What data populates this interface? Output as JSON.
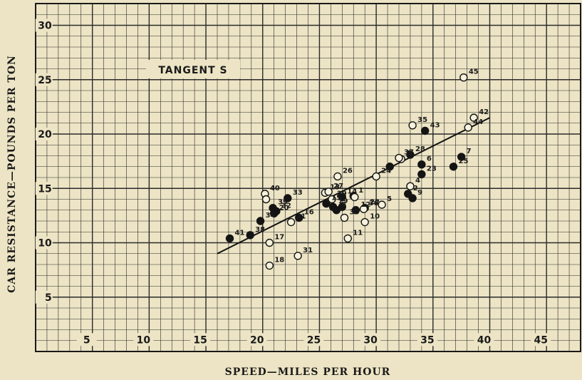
{
  "chart_data": {
    "type": "scatter",
    "annotation": "TANGENT S",
    "xlabel": "SPEED—MILES PER HOUR",
    "ylabel": "CAR RESISTANCE—POUNDS PER TON",
    "xlim": [
      0,
      48
    ],
    "ylim": [
      0,
      32
    ],
    "x_ticks": [
      5,
      10,
      15,
      20,
      25,
      30,
      35,
      40,
      45
    ],
    "y_ticks": [
      5,
      10,
      15,
      20,
      25,
      30
    ],
    "grid": true,
    "trendline": {
      "x": [
        16,
        40
      ],
      "y": [
        9.0,
        21.5
      ]
    },
    "points": [
      {
        "label": "1",
        "x": 28.0,
        "y": 14.3,
        "filled": true
      },
      {
        "label": "2",
        "x": 32.8,
        "y": 14.5,
        "filled": true
      },
      {
        "label": "3",
        "x": 32.2,
        "y": 17.7,
        "filled": false
      },
      {
        "label": "4",
        "x": 33.0,
        "y": 15.2,
        "filled": false
      },
      {
        "label": "5",
        "x": 30.5,
        "y": 13.5,
        "filled": false
      },
      {
        "label": "6",
        "x": 34.0,
        "y": 17.2,
        "filled": true
      },
      {
        "label": "7",
        "x": 37.5,
        "y": 17.9,
        "filled": true
      },
      {
        "label": "8",
        "x": 26.5,
        "y": 13.0,
        "filled": true
      },
      {
        "label": "9",
        "x": 33.2,
        "y": 14.1,
        "filled": true
      },
      {
        "label": "10",
        "x": 29.0,
        "y": 11.9,
        "filled": false
      },
      {
        "label": "11",
        "x": 27.5,
        "y": 10.4,
        "filled": false
      },
      {
        "label": "12",
        "x": 28.2,
        "y": 13.0,
        "filled": true
      },
      {
        "label": "13",
        "x": 25.5,
        "y": 14.6,
        "filled": false
      },
      {
        "label": "14",
        "x": 27.0,
        "y": 14.2,
        "filled": true
      },
      {
        "label": "15",
        "x": 25.6,
        "y": 13.6,
        "filled": true
      },
      {
        "label": "16",
        "x": 23.2,
        "y": 12.3,
        "filled": true
      },
      {
        "label": "17",
        "x": 20.6,
        "y": 10.0,
        "filled": false
      },
      {
        "label": "18",
        "x": 20.6,
        "y": 7.9,
        "filled": false
      },
      {
        "label": "19",
        "x": 26.2,
        "y": 13.3,
        "filled": true
      },
      {
        "label": "20",
        "x": 21.0,
        "y": 12.7,
        "filled": true
      },
      {
        "label": "21",
        "x": 22.5,
        "y": 11.9,
        "filled": false
      },
      {
        "label": "22",
        "x": 29.0,
        "y": 13.2,
        "filled": true
      },
      {
        "label": "23",
        "x": 34.0,
        "y": 16.3,
        "filled": true
      },
      {
        "label": "24",
        "x": 30.0,
        "y": 16.1,
        "filled": false
      },
      {
        "label": "25",
        "x": 36.8,
        "y": 17.0,
        "filled": true
      },
      {
        "label": "26",
        "x": 26.6,
        "y": 16.1,
        "filled": false
      },
      {
        "label": "27",
        "x": 25.8,
        "y": 14.7,
        "filled": false
      },
      {
        "label": "28",
        "x": 33.0,
        "y": 18.1,
        "filled": true
      },
      {
        "label": "29",
        "x": 26.1,
        "y": 14.0,
        "filled": false
      },
      {
        "label": "30",
        "x": 27.2,
        "y": 12.3,
        "filled": false
      },
      {
        "label": "31",
        "x": 23.1,
        "y": 8.8,
        "filled": false
      },
      {
        "label": "32",
        "x": 21.2,
        "y": 12.9,
        "filled": true
      },
      {
        "label": "33",
        "x": 22.2,
        "y": 14.1,
        "filled": true
      },
      {
        "label": "34",
        "x": 19.8,
        "y": 12.0,
        "filled": true
      },
      {
        "label": "35",
        "x": 33.2,
        "y": 20.8,
        "filled": false
      },
      {
        "label": "36",
        "x": 28.9,
        "y": 13.1,
        "filled": false
      },
      {
        "label": "37",
        "x": 32.0,
        "y": 17.8,
        "filled": false
      },
      {
        "label": "38",
        "x": 18.9,
        "y": 10.7,
        "filled": true
      },
      {
        "label": "39",
        "x": 20.9,
        "y": 13.2,
        "filled": true
      },
      {
        "label": "40",
        "x": 20.2,
        "y": 14.5,
        "filled": false
      },
      {
        "label": "41",
        "x": 17.1,
        "y": 10.4,
        "filled": true
      },
      {
        "label": "42",
        "x": 38.6,
        "y": 21.5,
        "filled": false
      },
      {
        "label": "43",
        "x": 34.3,
        "y": 20.3,
        "filled": true
      },
      {
        "label": "44",
        "x": 38.1,
        "y": 20.6,
        "filled": false
      },
      {
        "label": "45",
        "x": 37.7,
        "y": 25.2,
        "filled": false
      },
      {
        "label": "",
        "x": 20.3,
        "y": 14.0,
        "filled": false
      },
      {
        "label": "",
        "x": 31.2,
        "y": 17.0,
        "filled": true
      },
      {
        "label": "",
        "x": 28.1,
        "y": 14.2,
        "filled": false
      },
      {
        "label": "",
        "x": 27.0,
        "y": 13.3,
        "filled": true
      }
    ]
  }
}
